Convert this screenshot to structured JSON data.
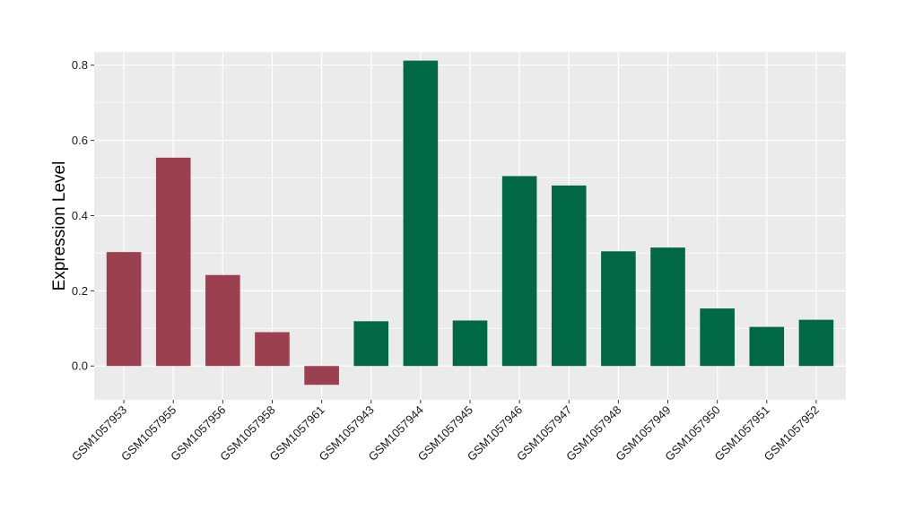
{
  "chart_data": {
    "type": "bar",
    "categories": [
      "GSM1057953",
      "GSM1057955",
      "GSM1057956",
      "GSM1057958",
      "GSM1057961",
      "GSM1057943",
      "GSM1057944",
      "GSM1057945",
      "GSM1057946",
      "GSM1057947",
      "GSM1057948",
      "GSM1057949",
      "GSM1057950",
      "GSM1057951",
      "GSM1057952"
    ],
    "values": [
      0.303,
      0.554,
      0.242,
      0.09,
      -0.05,
      0.119,
      0.812,
      0.121,
      0.505,
      0.48,
      0.305,
      0.315,
      0.153,
      0.104,
      0.123
    ],
    "groups": [
      "a",
      "a",
      "a",
      "a",
      "a",
      "b",
      "b",
      "b",
      "b",
      "b",
      "b",
      "b",
      "b",
      "b",
      "b"
    ],
    "group_colors": {
      "a": "#9b404e",
      "b": "#006844"
    },
    "title": "",
    "xlabel": "",
    "ylabel": "Expression Level",
    "ylim": [
      -0.09,
      0.835
    ],
    "yticks": [
      0.0,
      0.2,
      0.4,
      0.6,
      0.8
    ],
    "ytick_labels": [
      "0.0",
      "0.2",
      "0.4",
      "0.6",
      "0.8"
    ],
    "grid": true,
    "legend": "none",
    "panel_color": "#ebebeb",
    "grid_color": "#ffffff"
  }
}
